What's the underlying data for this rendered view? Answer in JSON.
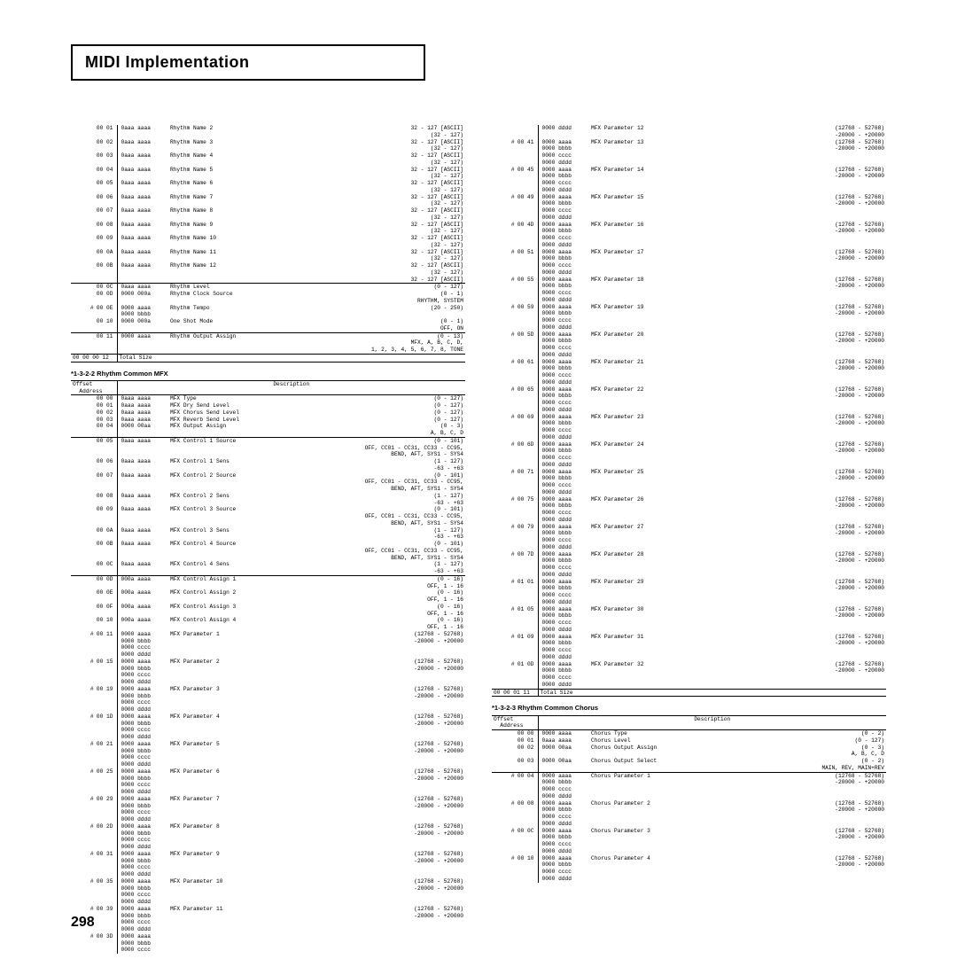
{
  "page_title": "MIDI Implementation",
  "page_number": "298",
  "section_1_3_2_2": "*1-3-2-2 Rhythm Common MFX",
  "section_1_3_2_3": "*1-3-2-3 Rhythm Common Chorus",
  "hdr_offset": "Offset\n  Address",
  "hdr_desc": "Description",
  "total_size_label": "Total Size",
  "rhythm_names": [
    {
      "off": "00 01",
      "val": "0aaa aaaa",
      "desc": "Rhythm Name 2",
      "rng": "32 - 127 [ASCII]\n(32 - 127)"
    },
    {
      "off": "00 02",
      "val": "0aaa aaaa",
      "desc": "Rhythm Name 3",
      "rng": "32 - 127 [ASCII]\n(32 - 127)"
    },
    {
      "off": "00 03",
      "val": "0aaa aaaa",
      "desc": "Rhythm Name 4",
      "rng": "32 - 127 [ASCII]\n(32 - 127)"
    },
    {
      "off": "00 04",
      "val": "0aaa aaaa",
      "desc": "Rhythm Name 5",
      "rng": "32 - 127 [ASCII]\n(32 - 127)"
    },
    {
      "off": "00 05",
      "val": "0aaa aaaa",
      "desc": "Rhythm Name 6",
      "rng": "32 - 127 [ASCII]\n(32 - 127)"
    },
    {
      "off": "00 06",
      "val": "0aaa aaaa",
      "desc": "Rhythm Name 7",
      "rng": "32 - 127 [ASCII]\n(32 - 127)"
    },
    {
      "off": "00 07",
      "val": "0aaa aaaa",
      "desc": "Rhythm Name 8",
      "rng": "32 - 127 [ASCII]\n(32 - 127)"
    },
    {
      "off": "00 08",
      "val": "0aaa aaaa",
      "desc": "Rhythm Name 9",
      "rng": "32 - 127 [ASCII]\n(32 - 127)"
    },
    {
      "off": "00 09",
      "val": "0aaa aaaa",
      "desc": "Rhythm Name 10",
      "rng": "32 - 127 [ASCII]\n(32 - 127)"
    },
    {
      "off": "00 0A",
      "val": "0aaa aaaa",
      "desc": "Rhythm Name 11",
      "rng": "32 - 127 [ASCII]\n(32 - 127)"
    },
    {
      "off": "00 0B",
      "val": "0aaa aaaa",
      "desc": "Rhythm Name 12",
      "rng": "32 - 127 [ASCII]\n(32 - 127)\n32 - 127 [ASCII]"
    }
  ],
  "rhythm_misc": [
    {
      "off": "00 0C",
      "val": "0aaa aaaa",
      "desc": "Rhythm Level",
      "rng": "(0 - 127)"
    },
    {
      "off": "00 0D",
      "val": "0000 000a",
      "desc": "Rhythm Clock Source",
      "rng": "(0 - 1)\nRHYTHM, SYSTEM"
    },
    {
      "off": "00 0E",
      "val": "0000 aaaa\n0000 bbbb",
      "desc": "Rhythm Tempo",
      "rng": "(20 - 250)",
      "hash": true
    },
    {
      "off": "00 10",
      "val": "0000 000a",
      "desc": "One Shot Mode",
      "rng": "(0 - 1)\nOFF, ON"
    }
  ],
  "rhythm_out": [
    {
      "off": "00 11",
      "val": "0000 aaaa",
      "desc": "Rhythm Output Assign",
      "rng": "(0 - 13)\nMFX, A, B, C, D,\n1, 2, 3, 4, 5, 6, 7, 8, TONE"
    }
  ],
  "rhythm_total": "00 00 00 12",
  "mfx_head": [
    {
      "off": "00 00",
      "val": "0aaa aaaa",
      "desc": "MFX Type",
      "rng": "(0 - 127)"
    },
    {
      "off": "00 01",
      "val": "0aaa aaaa",
      "desc": "MFX Dry Send Level",
      "rng": "(0 - 127)"
    },
    {
      "off": "00 02",
      "val": "0aaa aaaa",
      "desc": "MFX Chorus Send Level",
      "rng": "(0 - 127)"
    },
    {
      "off": "00 03",
      "val": "0aaa aaaa",
      "desc": "MFX Reverb Send Level",
      "rng": "(0 - 127)"
    },
    {
      "off": "00 04",
      "val": "0000 00aa",
      "desc": "MFX Output Assign",
      "rng": "(0 - 3)\nA, B, C, D"
    }
  ],
  "mfx_ctrl": [
    {
      "off": "00 05",
      "val": "0aaa aaaa",
      "desc": "MFX Control 1 Source",
      "rng": "(0 - 101)\nOFF, CC01 - CC31, CC33 - CC95,\nBEND, AFT, SYS1 - SYS4"
    },
    {
      "off": "00 06",
      "val": "0aaa aaaa",
      "desc": "MFX Control 1 Sens",
      "rng": "(1 - 127)\n-63 - +63"
    },
    {
      "off": "00 07",
      "val": "0aaa aaaa",
      "desc": "MFX Control 2 Source",
      "rng": "(0 - 101)\nOFF, CC01 - CC31, CC33 - CC95,\nBEND, AFT, SYS1 - SYS4"
    },
    {
      "off": "00 08",
      "val": "0aaa aaaa",
      "desc": "MFX Control 2 Sens",
      "rng": "(1 - 127)\n-63 - +63"
    },
    {
      "off": "00 09",
      "val": "0aaa aaaa",
      "desc": "MFX Control 3 Source",
      "rng": "(0 - 101)\nOFF, CC01 - CC31, CC33 - CC95,\nBEND, AFT, SYS1 - SYS4"
    },
    {
      "off": "00 0A",
      "val": "0aaa aaaa",
      "desc": "MFX Control 3 Sens",
      "rng": "(1 - 127)\n-63 - +63"
    },
    {
      "off": "00 0B",
      "val": "0aaa aaaa",
      "desc": "MFX Control 4 Source",
      "rng": "(0 - 101)\nOFF, CC01 - CC31, CC33 - CC95,\nBEND, AFT, SYS1 - SYS4"
    },
    {
      "off": "00 0C",
      "val": "0aaa aaaa",
      "desc": "MFX Control 4 Sens",
      "rng": "(1 - 127)\n-63 - +63"
    }
  ],
  "mfx_assign": [
    {
      "off": "00 0D",
      "val": "000a aaaa",
      "desc": "MFX Control Assign 1",
      "rng": "(0 - 16)\nOFF, 1 - 16"
    },
    {
      "off": "00 0E",
      "val": "000a aaaa",
      "desc": "MFX Control Assign 2",
      "rng": "(0 - 16)\nOFF, 1 - 16"
    },
    {
      "off": "00 0F",
      "val": "000a aaaa",
      "desc": "MFX Control Assign 3",
      "rng": "(0 - 16)\nOFF, 1 - 16"
    },
    {
      "off": "00 10",
      "val": "000a aaaa",
      "desc": "MFX Control Assign 4",
      "rng": "(0 - 16)\nOFF, 1 - 16"
    }
  ],
  "param_value": "0000 aaaa\n0000 bbbb\n0000 cccc\n0000 dddd",
  "param_range": "(12768 - 52768)\n-20000 - +20000",
  "mfx_params_left": [
    {
      "off": "00 11",
      "n": 1
    },
    {
      "off": "00 15",
      "n": 2
    },
    {
      "off": "00 19",
      "n": 3
    },
    {
      "off": "00 1D",
      "n": 4
    },
    {
      "off": "00 21",
      "n": 5
    },
    {
      "off": "00 25",
      "n": 6
    },
    {
      "off": "00 29",
      "n": 7
    },
    {
      "off": "00 2D",
      "n": 8
    },
    {
      "off": "00 31",
      "n": 9
    },
    {
      "off": "00 35",
      "n": 10
    },
    {
      "off": "00 39",
      "n": 11
    },
    {
      "off": "00 3D",
      "n": 12
    }
  ],
  "mfx_params_right": [
    {
      "off": "00 41",
      "n": 13
    },
    {
      "off": "00 45",
      "n": 14
    },
    {
      "off": "00 49",
      "n": 15
    },
    {
      "off": "00 4D",
      "n": 16
    },
    {
      "off": "00 51",
      "n": 17
    },
    {
      "off": "00 55",
      "n": 18
    },
    {
      "off": "00 59",
      "n": 19
    },
    {
      "off": "00 5D",
      "n": 20
    },
    {
      "off": "00 61",
      "n": 21
    },
    {
      "off": "00 65",
      "n": 22
    },
    {
      "off": "00 69",
      "n": 23
    },
    {
      "off": "00 6D",
      "n": 24
    },
    {
      "off": "00 71",
      "n": 25
    },
    {
      "off": "00 75",
      "n": 26
    },
    {
      "off": "00 79",
      "n": 27
    },
    {
      "off": "00 7D",
      "n": 28
    },
    {
      "off": "01 01",
      "n": 29
    },
    {
      "off": "01 05",
      "n": 30
    },
    {
      "off": "01 09",
      "n": 31
    },
    {
      "off": "01 0D",
      "n": 32
    }
  ],
  "mfx_total": "00 00 01 11",
  "chorus_head": [
    {
      "off": "00 00",
      "val": "0000 aaaa",
      "desc": "Chorus Type",
      "rng": "(0 - 2)"
    },
    {
      "off": "00 01",
      "val": "0aaa aaaa",
      "desc": "Chorus Level",
      "rng": "(0 - 127)"
    },
    {
      "off": "00 02",
      "val": "0000 00aa",
      "desc": "Chorus Output Assign",
      "rng": "(0 - 3)\nA, B, C, D"
    },
    {
      "off": "00 03",
      "val": "0000 00aa",
      "desc": "Chorus Output Select",
      "rng": "(0 - 2)\nMAIN, REV, MAIN+REV"
    }
  ],
  "chorus_params": [
    {
      "off": "00 04",
      "n": 1
    },
    {
      "off": "00 08",
      "n": 2
    },
    {
      "off": "00 0C",
      "n": 3
    },
    {
      "off": "00 10",
      "n": 4
    }
  ]
}
